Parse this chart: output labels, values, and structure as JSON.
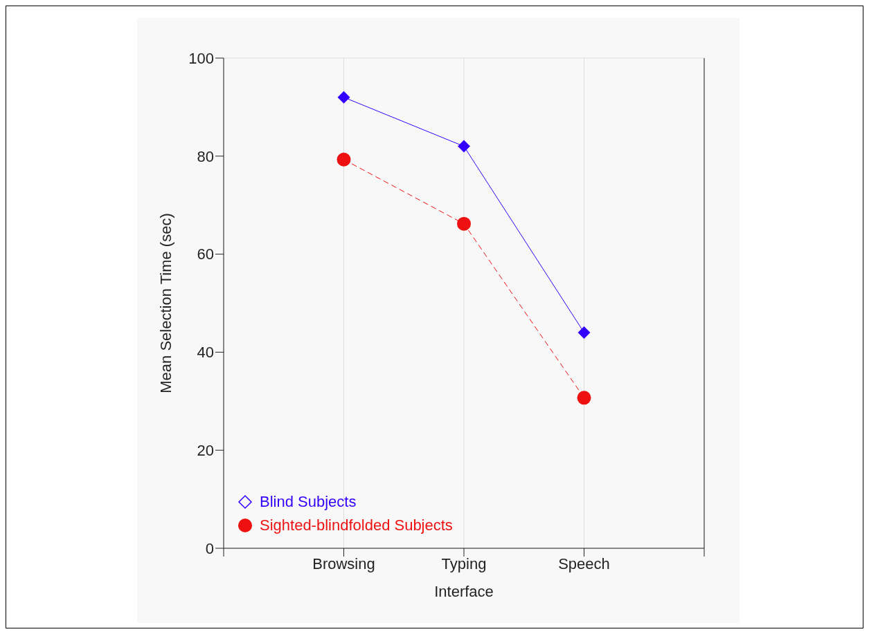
{
  "chart_data": {
    "type": "line",
    "xlabel": "Interface",
    "ylabel": "Mean Selection Time (sec)",
    "categories": [
      null,
      "Browsing",
      "Typing",
      "Speech",
      null
    ],
    "series": [
      {
        "name": "Blind Subjects",
        "color": "#3300ff",
        "values": [
          null,
          92,
          82,
          44,
          null
        ],
        "marker": "diamond",
        "line_style": "solid"
      },
      {
        "name": "Sighted-blindfolded Subjects",
        "color": "#ee1111",
        "values": [
          null,
          79.3,
          66.2,
          30.7,
          null
        ],
        "marker": "circle",
        "line_style": "dashed"
      }
    ],
    "ylim": [
      0,
      100
    ],
    "yticks": [
      0,
      20,
      40,
      60,
      80,
      100
    ],
    "grid": true,
    "legend": "bottom left"
  }
}
